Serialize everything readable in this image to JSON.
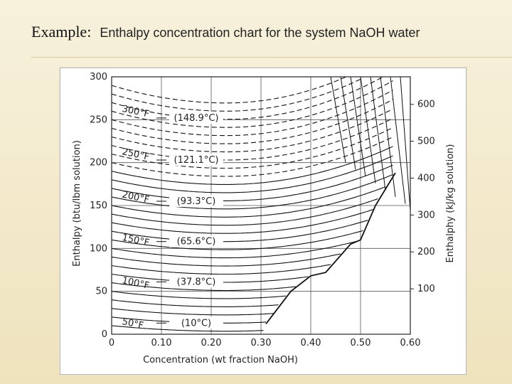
{
  "slide": {
    "label": "Example:",
    "title": "Enthalpy concentration chart for the system NaOH water"
  },
  "chart_data": {
    "type": "line",
    "title": "Enthalpy concentration chart for the system NaOH water",
    "xlabel": "Concentration (wt fraction NaOH)",
    "ylabel": "Enthalpy (btu/lbm solution)",
    "ylabel_right": "Enthalphy (kJ/kg solution)",
    "xlim": [
      0,
      0.6
    ],
    "ylim": [
      0,
      300
    ],
    "x_ticks": [
      "0",
      "0.10",
      "0.20",
      "0.30",
      "0.40",
      "0.50",
      "0.60"
    ],
    "y_ticks": [
      "0",
      "50",
      "100",
      "150",
      "200",
      "250",
      "300"
    ],
    "y2_ticks": [
      "100",
      "200",
      "300",
      "400",
      "500",
      "600"
    ],
    "isotherms": [
      {
        "label": "50°F",
        "celsius": "(10°C)",
        "y0": 20,
        "ymin": 13
      },
      {
        "label": "100°F",
        "celsius": "(37.8°C)",
        "y0": 68,
        "ymin": 61
      },
      {
        "label": "150°F",
        "celsius": "(65.6°C)",
        "y0": 118,
        "ymin": 108
      },
      {
        "label": "200°F",
        "celsius": "(93.3°C)",
        "y0": 168,
        "ymin": 155
      },
      {
        "label": "250°F",
        "celsius": "(121.1°C)",
        "y0": 218,
        "ymin": 203
      },
      {
        "label": "300°F",
        "celsius": "(148.9°C)",
        "y0": 268,
        "ymin": 252
      }
    ],
    "saturation_boundary": [
      [
        0.31,
        12
      ],
      [
        0.36,
        50
      ],
      [
        0.4,
        68
      ],
      [
        0.43,
        72
      ],
      [
        0.48,
        105
      ],
      [
        0.5,
        110
      ],
      [
        0.53,
        150
      ],
      [
        0.57,
        188
      ]
    ]
  }
}
